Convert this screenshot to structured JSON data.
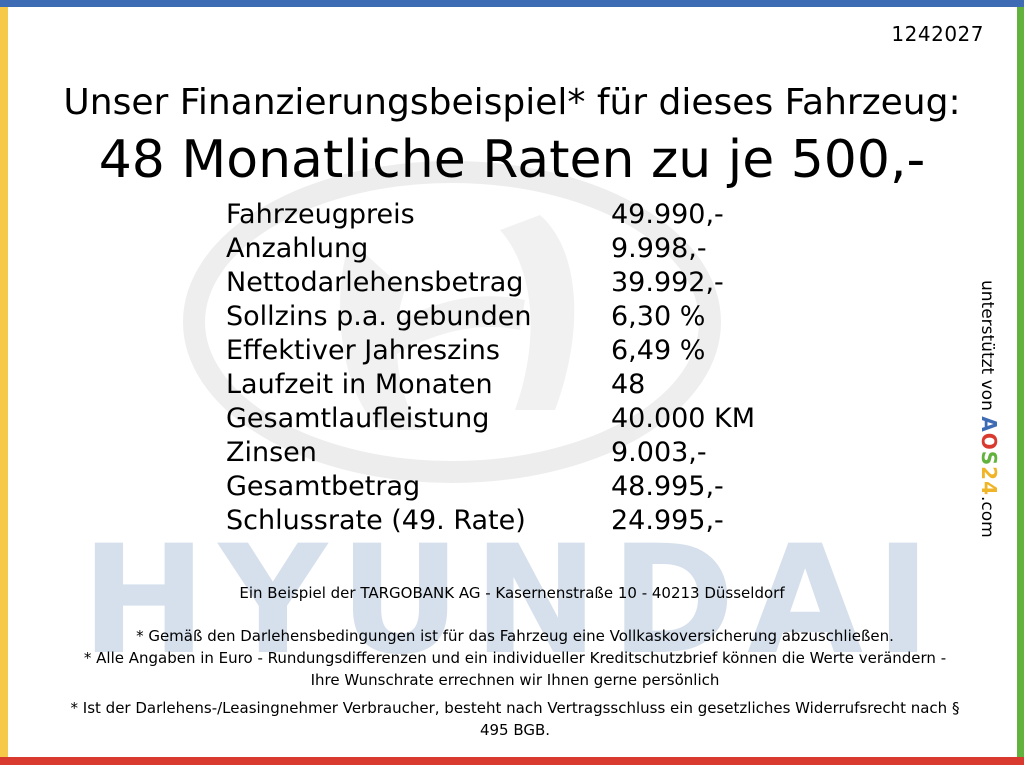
{
  "reference_number": "1242027",
  "headline": "Unser Finanzierungsbeispiel* für dieses Fahrzeug:",
  "rate_line": "48 Monatliche Raten zu je 500,-",
  "finance_rows": [
    {
      "label": "Fahrzeugpreis",
      "value": "49.990,-"
    },
    {
      "label": "Anzahlung",
      "value": "9.998,-"
    },
    {
      "label": "Nettodarlehensbetrag",
      "value": "39.992,-"
    },
    {
      "label": "Sollzins p.a. gebunden",
      "value": "6,30 %"
    },
    {
      "label": "Effektiver Jahreszins",
      "value": "6,49 %"
    },
    {
      "label": "Laufzeit in Monaten",
      "value": "48"
    },
    {
      "label": "Gesamtlaufleistung",
      "value": "40.000 KM"
    },
    {
      "label": "Zinsen",
      "value": "9.003,-"
    },
    {
      "label": "Gesamtbetrag",
      "value": "48.995,-"
    },
    {
      "label": "Schlussrate (49. Rate)",
      "value": "24.995,-"
    }
  ],
  "bank_line": "Ein Beispiel der TARGOBANK AG - Kasernenstraße 10 - 40213 Düsseldorf",
  "notes": [
    "* Gemäß den Darlehensbedingungen ist für das Fahrzeug eine Vollkaskoversicherung abzuschließen.",
    "* Alle Angaben in Euro - Rundungsdifferenzen und ein individueller Kreditschutzbrief können die Werte verändern - Ihre Wunschrate errechnen wir Ihnen gerne persönlich",
    "* Ist der Darlehens-/Leasingnehmer Verbraucher, besteht nach Vertragsschluss ein gesetzliches Widerrufsrecht nach § 495 BGB."
  ],
  "side_text": {
    "prefix": "unterstützt von",
    "brand_a": "A",
    "brand_o": "O",
    "brand_s": "S",
    "brand_num": "24",
    "suffix": ".com"
  },
  "watermark_text": "HYUNDAI",
  "colors": {
    "bar_top": "#3d6cb5",
    "bar_bottom": "#d93a2f",
    "bar_left": "#f7c948",
    "bar_right": "#62b23e",
    "watermark": "#c9d6e6"
  }
}
